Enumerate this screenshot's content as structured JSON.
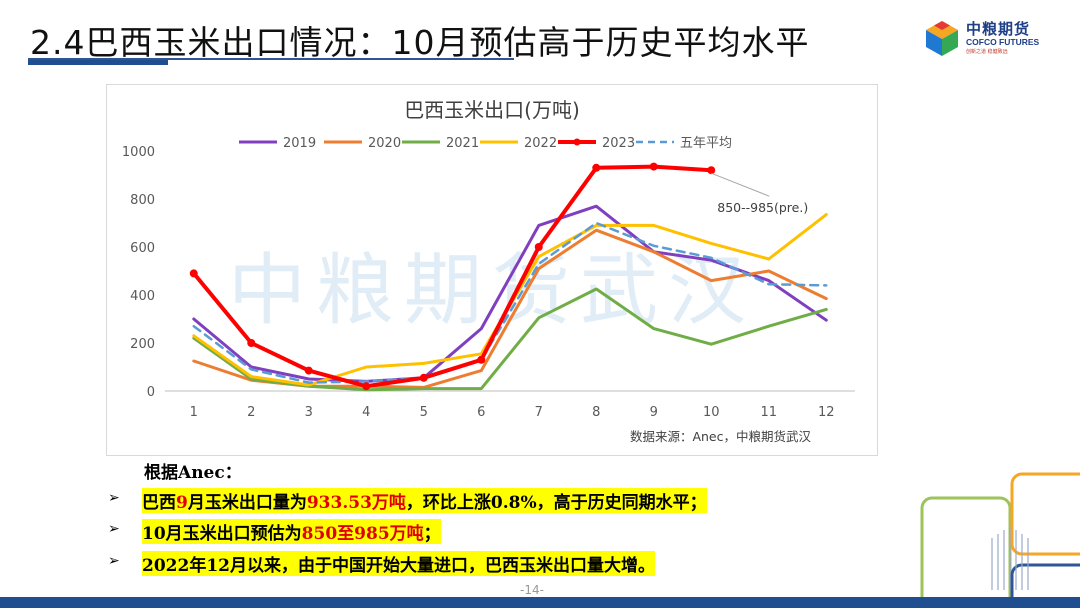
{
  "slide": {
    "title": "2.4巴西玉米出口情况：10月预估高于历史平均水平",
    "page_number": "-14-"
  },
  "logo": {
    "name_cn": "中粮期货",
    "name_en": "COFCO FUTURES",
    "tagline": "创新之道 稳健致远"
  },
  "colors": {
    "title_rule": "#1f4e91",
    "highlight": "#ffff00",
    "emphasis_red": "#e00000"
  },
  "chart_data": {
    "type": "line",
    "title": "巴西玉米出口(万吨)",
    "x": [
      1,
      2,
      3,
      4,
      5,
      6,
      7,
      8,
      9,
      10,
      11,
      12
    ],
    "ylim": [
      0,
      1000
    ],
    "yticks": [
      0,
      200,
      400,
      600,
      800,
      1000
    ],
    "grid": false,
    "legend_position": "top",
    "watermark": "中粮期货武汉",
    "source": "数据来源：Anec，中粮期货武汉",
    "annotation": "850--985(pre.)",
    "series": [
      {
        "name": "2019",
        "color": "#7f3fbf",
        "width": 3,
        "dash": false,
        "values": [
          300,
          100,
          50,
          40,
          55,
          260,
          690,
          770,
          580,
          545,
          460,
          295
        ]
      },
      {
        "name": "2020",
        "color": "#ed7d31",
        "width": 3,
        "dash": false,
        "values": [
          125,
          45,
          20,
          20,
          15,
          85,
          510,
          670,
          580,
          460,
          500,
          385
        ]
      },
      {
        "name": "2021",
        "color": "#70ad47",
        "width": 3,
        "dash": false,
        "values": [
          220,
          50,
          20,
          5,
          10,
          10,
          305,
          425,
          260,
          195,
          270,
          340
        ]
      },
      {
        "name": "2022",
        "color": "#ffc000",
        "width": 3,
        "dash": false,
        "values": [
          230,
          60,
          25,
          100,
          115,
          155,
          560,
          690,
          690,
          615,
          550,
          735
        ]
      },
      {
        "name": "2023",
        "color": "#ff0000",
        "width": 4,
        "dash": false,
        "values": [
          490,
          200,
          85,
          20,
          55,
          130,
          600,
          930,
          935,
          920,
          null,
          null
        ]
      },
      {
        "name": "五年平均",
        "color": "#5b9bd5",
        "width": 2.5,
        "dash": true,
        "values": [
          270,
          90,
          35,
          40,
          55,
          130,
          530,
          700,
          605,
          555,
          445,
          440
        ]
      }
    ]
  },
  "text": {
    "intro": "根据Anec：",
    "bullet1": {
      "a": "巴西",
      "b": "9",
      "c": "月玉米出口量为",
      "d": "933.53万吨",
      "e": "，环比上涨0.8%，高于历史同期水平；"
    },
    "bullet2": {
      "a": "10月玉米出口预估为",
      "b": "850至985万吨",
      "c": "；"
    },
    "bullet3": "2022年12月以来，由于中国开始大量进口，巴西玉米出口量大增。",
    "arrow": "➢"
  }
}
